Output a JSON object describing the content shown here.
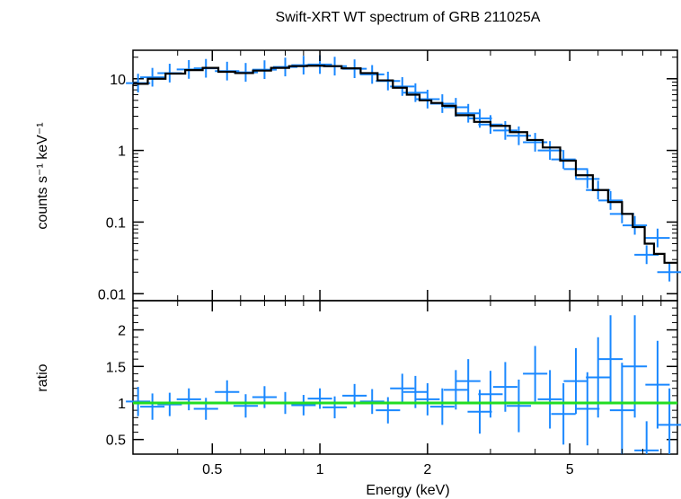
{
  "chart_data": [
    {
      "panel": "top",
      "type": "step+errorbar",
      "title": "Swift-XRT WT spectrum of GRB 211025A",
      "ylabel": "counts s⁻¹ keV⁻¹",
      "xlabel": "",
      "xscale": "log",
      "yscale": "log",
      "xlim": [
        0.3,
        10
      ],
      "ylim": [
        0.008,
        25
      ],
      "yticks": [
        0.01,
        0.1,
        1,
        10
      ],
      "ytick_labels": [
        "0.01",
        "0.1",
        "1",
        "10"
      ],
      "series": [
        {
          "role": "model",
          "color": "#000000",
          "x": [
            0.3,
            0.33,
            0.37,
            0.42,
            0.47,
            0.52,
            0.58,
            0.65,
            0.73,
            0.82,
            0.92,
            1.03,
            1.15,
            1.3,
            1.45,
            1.6,
            1.75,
            1.9,
            2.05,
            2.2,
            2.4,
            2.7,
            3.0,
            3.4,
            3.8,
            4.2,
            4.7,
            5.2,
            5.8,
            6.4,
            7.0,
            7.5,
            8.1,
            8.6,
            9.2,
            10.0
          ],
          "y": [
            8.5,
            10.0,
            11.8,
            13.2,
            14.2,
            12.5,
            12.0,
            13.0,
            14.2,
            15.0,
            15.2,
            15.0,
            14.0,
            12.0,
            9.5,
            7.5,
            6.0,
            5.0,
            4.6,
            4.2,
            3.1,
            2.5,
            2.2,
            1.8,
            1.4,
            1.1,
            0.72,
            0.45,
            0.28,
            0.19,
            0.13,
            0.085,
            0.05,
            0.036,
            0.027,
            0.027
          ]
        },
        {
          "role": "data",
          "color": "#1a88ff",
          "x": [
            0.31,
            0.34,
            0.38,
            0.43,
            0.48,
            0.55,
            0.62,
            0.7,
            0.8,
            0.9,
            1.0,
            1.1,
            1.25,
            1.4,
            1.55,
            1.7,
            1.85,
            2.0,
            2.2,
            2.4,
            2.6,
            2.8,
            3.0,
            3.3,
            3.6,
            4.0,
            4.4,
            4.8,
            5.2,
            5.6,
            6.0,
            6.5,
            7.0,
            7.6,
            8.2,
            8.8,
            9.5
          ],
          "y": [
            8.7,
            10.5,
            12.0,
            13.5,
            14.0,
            12.8,
            12.3,
            13.4,
            14.6,
            15.5,
            15.8,
            15.0,
            13.8,
            11.5,
            9.3,
            7.8,
            6.4,
            5.2,
            4.5,
            4.0,
            3.3,
            2.8,
            2.3,
            1.9,
            1.6,
            1.3,
            1.0,
            0.75,
            0.55,
            0.4,
            0.28,
            0.2,
            0.13,
            0.09,
            0.035,
            0.06,
            0.02
          ]
        }
      ]
    },
    {
      "panel": "bottom",
      "type": "errorbar",
      "title": "",
      "xlabel": "Energy (keV)",
      "ylabel": "ratio",
      "xscale": "log",
      "yscale": "linear",
      "xlim": [
        0.3,
        10
      ],
      "ylim": [
        0.3,
        2.4
      ],
      "xticks": [
        0.5,
        1,
        2,
        5
      ],
      "xtick_labels": [
        "0.5",
        "1",
        "2",
        "5"
      ],
      "yticks": [
        0.5,
        1,
        1.5,
        2
      ],
      "ytick_labels": [
        "0.5",
        "1",
        "1.5",
        "2"
      ],
      "reference_line": {
        "y": 1,
        "color": "#22dd22"
      },
      "series": [
        {
          "role": "ratio",
          "color": "#1a88ff",
          "x": [
            0.31,
            0.34,
            0.38,
            0.43,
            0.48,
            0.55,
            0.62,
            0.7,
            0.8,
            0.9,
            1.0,
            1.1,
            1.25,
            1.4,
            1.55,
            1.7,
            1.85,
            2.0,
            2.2,
            2.4,
            2.6,
            2.8,
            3.0,
            3.3,
            3.6,
            4.0,
            4.4,
            4.8,
            5.2,
            5.6,
            6.0,
            6.5,
            7.0,
            7.6,
            8.2,
            8.8,
            9.5
          ],
          "y": [
            1.02,
            0.95,
            0.98,
            1.05,
            0.92,
            1.15,
            0.96,
            1.08,
            1.0,
            0.97,
            1.06,
            0.94,
            1.1,
            1.02,
            0.9,
            1.2,
            1.15,
            1.05,
            0.95,
            1.18,
            1.3,
            0.88,
            1.12,
            1.22,
            0.96,
            1.4,
            1.05,
            0.85,
            1.3,
            0.92,
            1.35,
            1.6,
            0.9,
            1.5,
            0.35,
            1.25,
            0.7
          ],
          "yerr": [
            0.2,
            0.18,
            0.16,
            0.15,
            0.15,
            0.16,
            0.16,
            0.15,
            0.15,
            0.14,
            0.14,
            0.15,
            0.16,
            0.17,
            0.18,
            0.2,
            0.22,
            0.22,
            0.25,
            0.27,
            0.3,
            0.3,
            0.32,
            0.34,
            0.36,
            0.38,
            0.4,
            0.42,
            0.45,
            0.5,
            0.55,
            0.6,
            0.65,
            0.7,
            0.4,
            0.6,
            0.5
          ]
        }
      ]
    }
  ]
}
